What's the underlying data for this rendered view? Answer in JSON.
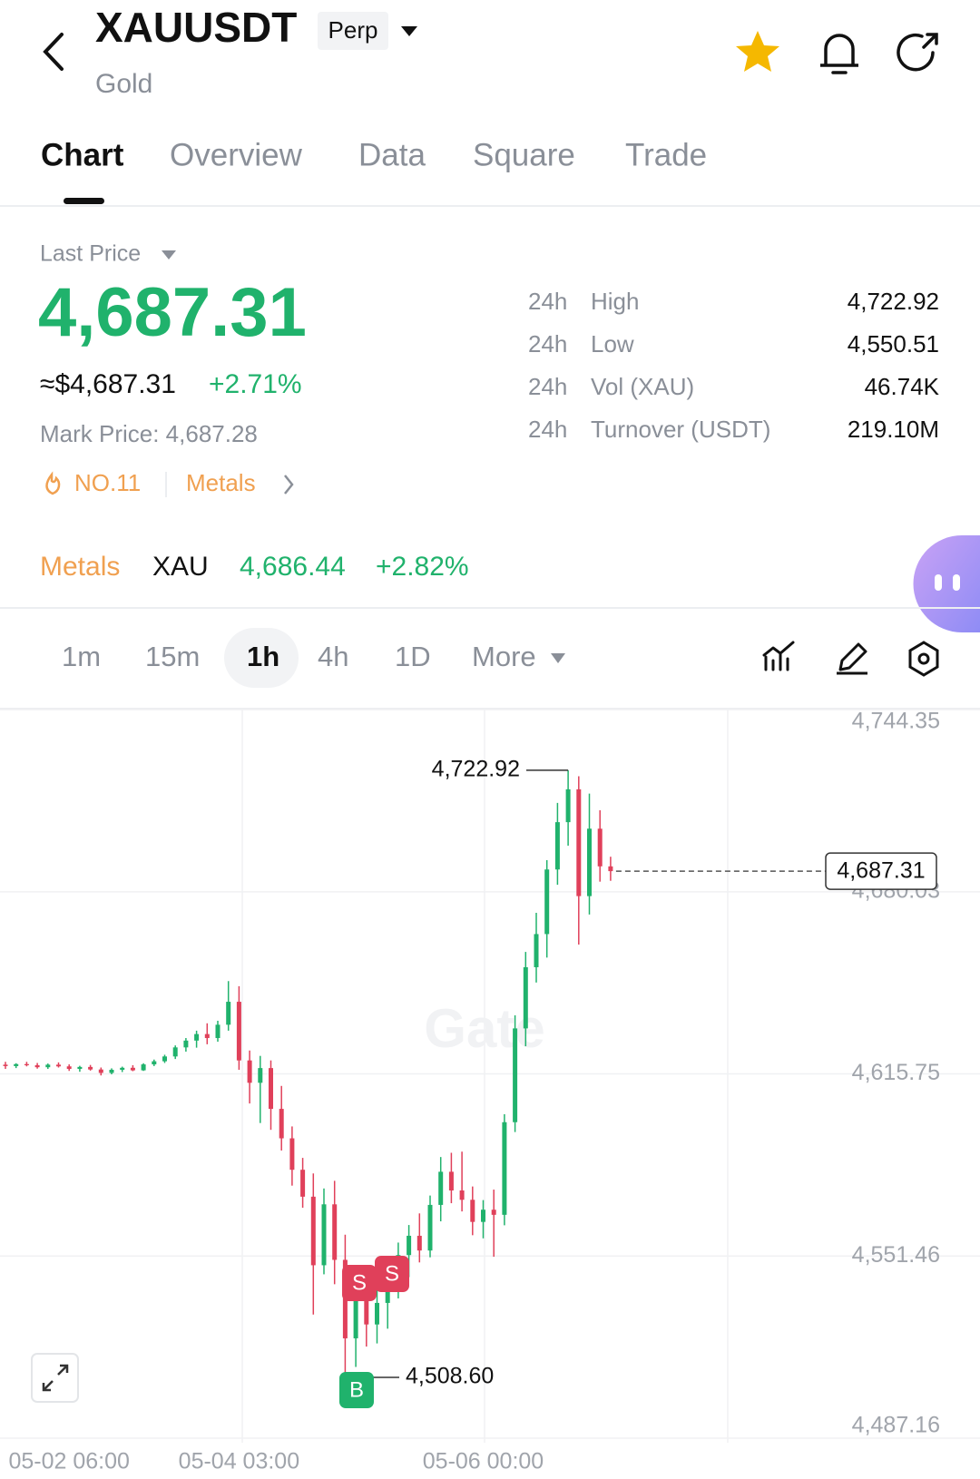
{
  "header": {
    "symbol": "XAUUSDT",
    "badge": "Perp",
    "name": "Gold"
  },
  "tabs": [
    "Chart",
    "Overview",
    "Data",
    "Square",
    "Trade"
  ],
  "price": {
    "label": "Last Price",
    "last": "4,687.31",
    "usd": "≈$4,687.31",
    "change": "+2.71%",
    "mark": "Mark Price: 4,687.28",
    "rank": "NO.11",
    "sector": "Metals"
  },
  "stats": [
    {
      "period": "24h",
      "label": "High",
      "value": "4,722.92"
    },
    {
      "period": "24h",
      "label": "Low",
      "value": "4,550.51"
    },
    {
      "period": "24h",
      "label": "Vol (XAU)",
      "value": "46.74K"
    },
    {
      "period": "24h",
      "label": "Turnover (USDT)",
      "value": "219.10M"
    }
  ],
  "ticker": {
    "sector": "Metals",
    "symbol": "XAU",
    "price": "4,686.44",
    "change": "+2.82%"
  },
  "intervals": [
    "1m",
    "15m",
    "1h",
    "4h",
    "1D",
    "More"
  ],
  "chart_data": {
    "type": "candlestick",
    "watermark": "Gate",
    "up_color": "#20b26c",
    "down_color": "#e0405a",
    "categories": [
      null,
      null,
      null,
      null,
      null,
      null,
      "05-02 06:00",
      null,
      null,
      null,
      null,
      null,
      null,
      null,
      null,
      null,
      null,
      null,
      null,
      null,
      null,
      null,
      "05-04 03:00",
      null,
      null,
      null,
      null,
      null,
      null,
      null,
      null,
      null,
      null,
      null,
      null,
      null,
      null,
      null,
      null,
      null,
      null,
      null,
      null,
      null,
      null,
      "05-06 00:00",
      null,
      null,
      null,
      null,
      null,
      null,
      null,
      null,
      null,
      null,
      null,
      null
    ],
    "open": [
      4619,
      4618.5,
      4619.2,
      4618.8,
      4618.1,
      4619.0,
      4618.4,
      4617.5,
      4618.2,
      4617.3,
      4616.1,
      4617.2,
      4617.9,
      4617.0,
      4619.1,
      4620.2,
      4621.9,
      4625.1,
      4627.5,
      4629.8,
      4628.4,
      4633.1,
      4641.2,
      4620.5,
      4612.6,
      4617.8,
      4603.4,
      4593.0,
      4581.9,
      4572.4,
      4548.2,
      4569.7,
      4550.1,
      4522.4,
      4536.8,
      4527.3,
      4534.9,
      4542.3,
      4551.8,
      4558.6,
      4553.4,
      4569.5,
      4581.2,
      4574.6,
      4571.3,
      4563.5,
      4567.8,
      4566.0,
      4598.7,
      4631.8,
      4653.4,
      4665.1,
      4687.9,
      4704.6,
      4716.2,
      4678.5,
      4702.3,
      4689.0
    ],
    "high": [
      4620,
      4619.5,
      4620,
      4619.6,
      4619.4,
      4619.8,
      4619.1,
      4618.6,
      4618.9,
      4618.0,
      4617.7,
      4618.3,
      4618.8,
      4619.5,
      4620.8,
      4622.5,
      4625.8,
      4628.4,
      4631.0,
      4633.6,
      4634.5,
      4648.5,
      4646.7,
      4624.0,
      4622.1,
      4620.5,
      4611.5,
      4597.2,
      4586.1,
      4580.6,
      4575.3,
      4578.0,
      4559.0,
      4541.6,
      4545.0,
      4541.0,
      4547.6,
      4556.2,
      4562.4,
      4566.5,
      4572.8,
      4586.4,
      4587.9,
      4588.3,
      4576.0,
      4571.2,
      4574.9,
      4601.5,
      4636.4,
      4658.8,
      4672.6,
      4691.2,
      4711.4,
      4722.92,
      4720.8,
      4714.7,
      4708.8,
      4692.4
    ],
    "low": [
      4617.5,
      4617.8,
      4618.4,
      4617.6,
      4617.5,
      4618.0,
      4616.8,
      4616.5,
      4616.9,
      4615.2,
      4615.6,
      4616.4,
      4616.7,
      4616.8,
      4618.5,
      4619.6,
      4621.0,
      4623.6,
      4625.0,
      4626.2,
      4627.1,
      4631.0,
      4617.2,
      4605.3,
      4598.4,
      4596.0,
      4588.7,
      4576.3,
      4568.5,
      4530.8,
      4545.0,
      4541.5,
      4508.6,
      4512.3,
      4519.5,
      4520.6,
      4525.8,
      4536.5,
      4544.0,
      4549.2,
      4551.0,
      4563.7,
      4570.1,
      4567.2,
      4558.8,
      4557.7,
      4551.2,
      4562.3,
      4595.2,
      4625.5,
      4648.0,
      4656.8,
      4682.5,
      4696.3,
      4661.4,
      4672.0,
      4683.6,
      4683.9
    ],
    "close": [
      4618.5,
      4619.2,
      4618.8,
      4618.1,
      4619.0,
      4618.4,
      4617.5,
      4618.2,
      4617.3,
      4616.1,
      4617.2,
      4617.9,
      4617.0,
      4619.1,
      4620.2,
      4621.9,
      4625.1,
      4627.5,
      4629.8,
      4628.4,
      4633.1,
      4641.2,
      4620.5,
      4612.6,
      4617.8,
      4603.4,
      4593.0,
      4581.9,
      4572.4,
      4548.2,
      4569.7,
      4550.1,
      4522.4,
      4536.8,
      4527.3,
      4534.9,
      4542.3,
      4551.8,
      4558.6,
      4553.4,
      4569.5,
      4581.2,
      4574.6,
      4571.3,
      4563.5,
      4567.8,
      4566.0,
      4598.7,
      4631.8,
      4653.4,
      4665.1,
      4687.9,
      4704.6,
      4716.2,
      4678.5,
      4702.3,
      4689.0,
      4687.31
    ],
    "ylim": [
      4487.16,
      4744.35
    ],
    "yticks": [
      {
        "value": 4487.16,
        "label": "4,487.16"
      },
      {
        "value": 4551.46,
        "label": "4,551.46"
      },
      {
        "value": 4615.75,
        "label": "4,615.75"
      },
      {
        "value": 4680.03,
        "label": "4,680.03"
      },
      {
        "value": 4744.35,
        "label": "4,744.35"
      }
    ],
    "high_label": {
      "value": 4722.92,
      "label": "4,722.92"
    },
    "low_label": {
      "value": 4508.6,
      "label": "4,508.60"
    },
    "last_label": {
      "value": 4687.31,
      "label": "4,687.31"
    },
    "trade_markers": [
      "S",
      "S",
      "B"
    ]
  }
}
